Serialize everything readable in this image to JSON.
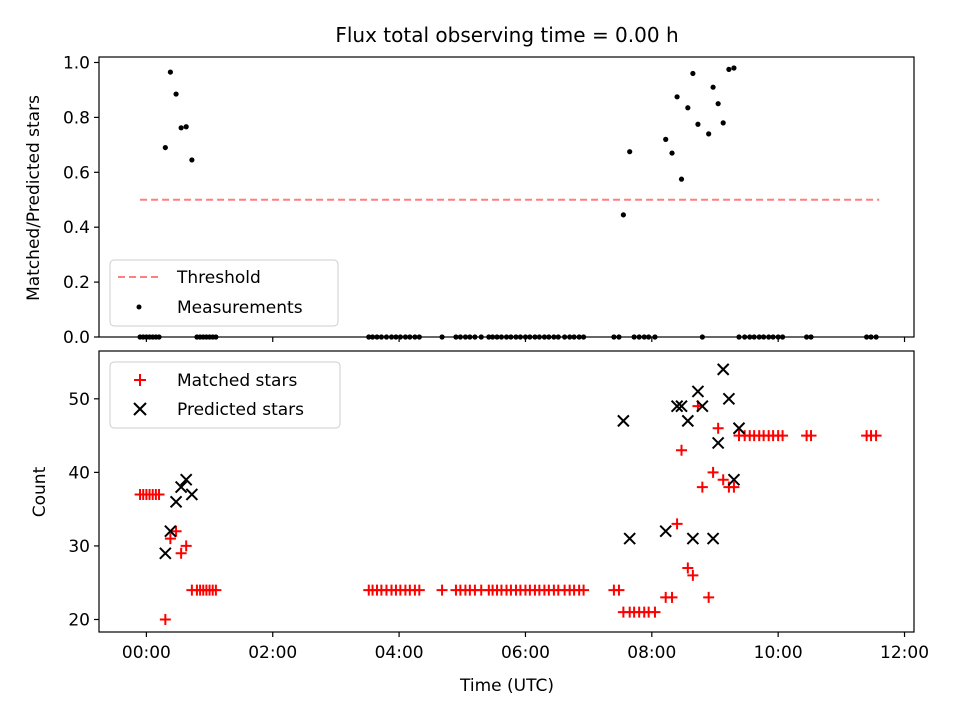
{
  "figure": {
    "title": "Flux total observing time = 0.00 h",
    "xlabel": "Time (UTC)"
  },
  "colors": {
    "threshold": "#ff7f7f",
    "measurements": "#000000",
    "matched": "#ff0000",
    "predicted": "#000000",
    "axes": "#000000",
    "legend_border": "#cccccc"
  },
  "chart_data": [
    {
      "type": "scatter",
      "panel": "top",
      "title": "Flux total observing time = 0.00 h",
      "xlabel": "",
      "ylabel": "Matched/Predicted stars",
      "xlim": [
        -0.75,
        12.15
      ],
      "ylim": [
        0.0,
        1.02
      ],
      "x_tick_positions": [
        0,
        2,
        4,
        6,
        8,
        10,
        12
      ],
      "x_tick_labels": [],
      "y_ticks": [
        0.0,
        0.2,
        0.4,
        0.6,
        0.8,
        1.0
      ],
      "y_tick_labels": [
        "0.0",
        "0.2",
        "0.4",
        "0.6",
        "0.8",
        "1.0"
      ],
      "legend": {
        "position": "lower-left",
        "entries": [
          "Threshold",
          "Measurements"
        ]
      },
      "series": [
        {
          "name": "Threshold",
          "kind": "dashed-line",
          "color": "#ff7f7f",
          "x": [
            -0.1,
            11.6
          ],
          "y": [
            0.5,
            0.5
          ]
        },
        {
          "name": "Measurements",
          "kind": "dot",
          "color": "#000000",
          "x": [
            -0.1,
            -0.05,
            0.0,
            0.05,
            0.1,
            0.15,
            0.2,
            0.3,
            0.38,
            0.47,
            0.55,
            0.63,
            0.72,
            0.8,
            0.85,
            0.9,
            0.95,
            1.0,
            1.05,
            1.1,
            3.52,
            3.58,
            3.65,
            3.72,
            3.8,
            3.88,
            3.95,
            4.02,
            4.1,
            4.17,
            4.25,
            4.32,
            4.68,
            4.9,
            4.97,
            5.05,
            5.12,
            5.2,
            5.3,
            5.42,
            5.48,
            5.55,
            5.62,
            5.7,
            5.77,
            5.85,
            5.92,
            6.0,
            6.07,
            6.15,
            6.22,
            6.3,
            6.37,
            6.45,
            6.52,
            6.62,
            6.7,
            6.77,
            6.85,
            6.92,
            7.4,
            7.48,
            7.55,
            7.65,
            7.72,
            7.8,
            7.88,
            7.95,
            8.05,
            8.22,
            8.32,
            8.4,
            8.47,
            8.57,
            8.65,
            8.73,
            8.8,
            8.9,
            8.97,
            9.05,
            9.13,
            9.22,
            9.3,
            9.38,
            9.47,
            9.55,
            9.62,
            9.7,
            9.77,
            9.85,
            9.92,
            10.0,
            10.07,
            10.45,
            10.52,
            11.4,
            11.47,
            11.55
          ],
          "y": [
            0,
            0,
            0,
            0,
            0,
            0,
            0,
            0.69,
            0.965,
            0.885,
            0.762,
            0.766,
            0.645,
            0,
            0,
            0,
            0,
            0,
            0,
            0,
            0,
            0,
            0,
            0,
            0,
            0,
            0,
            0,
            0,
            0,
            0,
            0,
            0,
            0,
            0,
            0,
            0,
            0,
            0,
            0,
            0,
            0,
            0,
            0,
            0,
            0,
            0,
            0,
            0,
            0,
            0,
            0,
            0,
            0,
            0,
            0,
            0,
            0,
            0,
            0,
            0,
            0,
            0.445,
            0.675,
            0,
            0,
            0,
            0,
            0,
            0.72,
            0.67,
            0.875,
            0.575,
            0.835,
            0.96,
            0.775,
            0,
            0.74,
            0.91,
            0.85,
            0.78,
            0.975,
            0.98,
            0,
            0,
            0,
            0,
            0,
            0,
            0,
            0,
            0,
            0,
            0,
            0,
            0,
            0,
            0
          ]
        }
      ]
    },
    {
      "type": "scatter",
      "panel": "bottom",
      "xlabel": "Time (UTC)",
      "ylabel": "Count",
      "xlim": [
        -0.75,
        12.15
      ],
      "ylim": [
        18.3,
        56.5
      ],
      "x_tick_positions": [
        0,
        2,
        4,
        6,
        8,
        10,
        12
      ],
      "x_tick_labels": [
        "00:00",
        "02:00",
        "04:00",
        "06:00",
        "08:00",
        "10:00",
        "12:00"
      ],
      "y_ticks": [
        20,
        30,
        40,
        50
      ],
      "y_tick_labels": [
        "20",
        "30",
        "40",
        "50"
      ],
      "legend": {
        "position": "top-left",
        "entries": [
          "Matched stars",
          "Predicted stars"
        ]
      },
      "series": [
        {
          "name": "Matched stars",
          "kind": "plus",
          "color": "#ff0000",
          "x": [
            -0.1,
            -0.05,
            0.0,
            0.05,
            0.1,
            0.15,
            0.2,
            0.3,
            0.38,
            0.47,
            0.55,
            0.63,
            0.72,
            0.8,
            0.85,
            0.9,
            0.95,
            1.0,
            1.05,
            1.1,
            3.52,
            3.58,
            3.65,
            3.72,
            3.8,
            3.88,
            3.95,
            4.02,
            4.1,
            4.17,
            4.25,
            4.32,
            4.68,
            4.9,
            4.97,
            5.05,
            5.12,
            5.2,
            5.3,
            5.42,
            5.48,
            5.55,
            5.62,
            5.7,
            5.77,
            5.85,
            5.92,
            6.0,
            6.07,
            6.15,
            6.22,
            6.3,
            6.37,
            6.45,
            6.52,
            6.62,
            6.7,
            6.77,
            6.85,
            6.92,
            7.4,
            7.48,
            7.55,
            7.65,
            7.72,
            7.8,
            7.88,
            7.95,
            8.05,
            8.22,
            8.32,
            8.4,
            8.47,
            8.57,
            8.65,
            8.73,
            8.8,
            8.9,
            8.97,
            9.05,
            9.13,
            9.22,
            9.3,
            9.38,
            9.47,
            9.55,
            9.62,
            9.7,
            9.77,
            9.85,
            9.92,
            10.0,
            10.07,
            10.45,
            10.52,
            11.4,
            11.47,
            11.55
          ],
          "y": [
            37,
            37,
            37,
            37,
            37,
            37,
            37,
            20,
            31,
            32,
            29,
            30,
            24,
            24,
            24,
            24,
            24,
            24,
            24,
            24,
            24,
            24,
            24,
            24,
            24,
            24,
            24,
            24,
            24,
            24,
            24,
            24,
            24,
            24,
            24,
            24,
            24,
            24,
            24,
            24,
            24,
            24,
            24,
            24,
            24,
            24,
            24,
            24,
            24,
            24,
            24,
            24,
            24,
            24,
            24,
            24,
            24,
            24,
            24,
            24,
            24,
            24,
            21,
            21,
            21,
            21,
            21,
            21,
            21,
            23,
            23,
            33,
            43,
            27,
            26,
            49,
            38,
            23,
            40,
            46,
            39,
            38,
            38,
            45,
            45,
            45,
            45,
            45,
            45,
            45,
            45,
            45,
            45,
            45,
            45,
            45,
            45,
            45
          ]
        },
        {
          "name": "Predicted stars",
          "kind": "x",
          "color": "#000000",
          "x": [
            0.3,
            0.38,
            0.47,
            0.55,
            0.63,
            0.72,
            7.55,
            7.65,
            8.22,
            8.4,
            8.47,
            8.57,
            8.65,
            8.73,
            8.8,
            8.97,
            9.05,
            9.13,
            9.22,
            9.3,
            9.38
          ],
          "y": [
            29,
            32,
            36,
            38,
            39,
            37,
            47,
            31,
            32,
            49,
            49,
            47,
            31,
            51,
            49,
            31,
            44,
            54,
            50,
            39,
            46
          ]
        }
      ]
    }
  ]
}
